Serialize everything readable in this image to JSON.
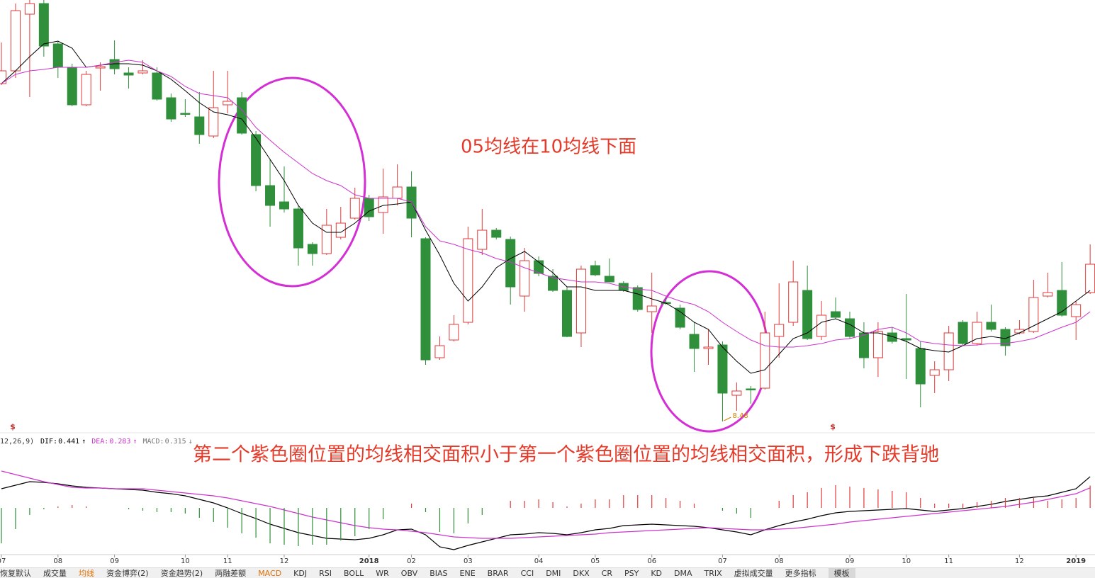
{
  "chart_data": [
    {
      "type": "candlestick",
      "open": [
        13.25,
        13.43,
        14.23,
        14.38,
        13.81,
        13.48,
        12.95,
        13.47,
        13.59,
        13.4,
        13.4,
        13.4,
        13.05,
        12.83,
        12.78,
        12.51,
        12.95,
        13.05,
        12.53,
        11.81,
        11.58,
        11.48,
        10.98,
        10.85,
        11.08,
        11.35,
        11.63,
        11.43,
        11.63,
        11.79,
        11.06,
        9.38,
        9.63,
        9.88,
        10.91,
        11.18,
        11.05,
        10.25,
        10.75,
        10.53,
        10.33,
        9.73,
        10.68,
        10.53,
        10.43,
        10.37,
        10.03,
        10.16,
        10.08,
        9.71,
        9.51,
        9.56,
        8.85,
        8.94,
        8.95,
        9.68,
        9.88,
        10.33,
        9.68,
        10.03,
        9.93,
        9.73,
        9.38,
        9.73,
        9.65,
        9.51,
        9.13,
        9.21,
        9.88,
        9.58,
        9.88,
        9.78,
        9.73,
        9.75,
        10.25,
        10.33,
        9.96,
        10.3
      ],
      "high": [
        13.83,
        14.38,
        14.43,
        14.43,
        13.85,
        13.53,
        13.43,
        13.55,
        13.86,
        13.48,
        13.58,
        13.48,
        13.11,
        13.03,
        13.13,
        13.43,
        13.43,
        13.13,
        12.58,
        12.18,
        12.08,
        11.53,
        11.01,
        11.48,
        11.51,
        11.78,
        11.68,
        12.05,
        12.11,
        12.01,
        11.08,
        9.68,
        9.98,
        11.23,
        11.48,
        11.21,
        11.09,
        10.93,
        10.81,
        10.63,
        10.38,
        10.68,
        10.75,
        10.78,
        10.46,
        10.4,
        10.58,
        10.23,
        10.13,
        9.88,
        9.78,
        9.61,
        9.03,
        8.98,
        10.03,
        10.43,
        10.75,
        10.68,
        10.18,
        10.23,
        10.03,
        9.88,
        9.88,
        9.81,
        10.28,
        9.61,
        9.33,
        9.83,
        9.91,
        10.03,
        10.13,
        9.81,
        9.91,
        10.48,
        10.58,
        10.73,
        10.18,
        10.98
      ],
      "low": [
        13.23,
        13.33,
        13.06,
        13.63,
        13.33,
        12.93,
        12.93,
        13.15,
        13.38,
        13.18,
        13.38,
        13.01,
        12.71,
        12.78,
        12.4,
        12.48,
        12.83,
        12.53,
        11.73,
        11.23,
        11.43,
        10.68,
        10.68,
        10.83,
        11.05,
        11.33,
        11.31,
        11.13,
        11.53,
        11.08,
        9.28,
        9.35,
        9.61,
        9.85,
        10.83,
        11.05,
        10.13,
        10.03,
        10.53,
        10.31,
        9.67,
        9.53,
        10.53,
        10.45,
        10.31,
        10.03,
        9.73,
        10.13,
        9.78,
        9.18,
        9.28,
        8.48,
        8.63,
        8.73,
        8.93,
        9.38,
        9.83,
        9.63,
        9.63,
        9.93,
        9.65,
        9.23,
        9.11,
        9.58,
        9.08,
        8.68,
        8.88,
        9.05,
        9.55,
        9.55,
        9.75,
        9.41,
        9.71,
        9.73,
        10.23,
        9.96,
        9.63,
        10.28
      ],
      "close": [
        13.43,
        14.28,
        14.38,
        13.78,
        13.48,
        12.95,
        13.38,
        13.49,
        13.46,
        13.37,
        13.43,
        13.03,
        12.75,
        12.82,
        12.53,
        12.91,
        13.0,
        12.55,
        11.81,
        11.53,
        11.48,
        10.93,
        10.85,
        11.25,
        11.28,
        11.63,
        11.37,
        11.65,
        11.79,
        11.35,
        9.35,
        9.55,
        9.85,
        11.06,
        11.18,
        11.08,
        10.38,
        10.75,
        10.57,
        10.33,
        9.68,
        10.63,
        10.55,
        10.45,
        10.33,
        10.06,
        10.11,
        10.15,
        9.81,
        9.51,
        9.53,
        8.88,
        8.91,
        8.93,
        9.73,
        9.85,
        10.45,
        9.65,
        9.98,
        9.95,
        9.68,
        9.38,
        9.75,
        9.61,
        9.63,
        9.01,
        9.21,
        9.73,
        9.58,
        9.88,
        9.78,
        9.55,
        9.78,
        10.23,
        10.3,
        9.98,
        10.13,
        10.7
      ],
      "up_color": "#e03a3a",
      "down_color": "#2f8f3a",
      "lines": [
        {
          "color": "#000000",
          "values": [
            13.25,
            13.43,
            13.63,
            13.81,
            13.85,
            13.75,
            13.48,
            13.51,
            13.53,
            13.53,
            13.51,
            13.43,
            13.31,
            13.15,
            12.98,
            12.85,
            12.81,
            12.75,
            12.48,
            12.18,
            11.88,
            11.53,
            11.28,
            11.15,
            11.15,
            11.28,
            11.45,
            11.53,
            11.55,
            11.58,
            11.18,
            10.83,
            10.43,
            10.18,
            10.38,
            10.65,
            10.78,
            10.88,
            10.73,
            10.58,
            10.38,
            10.38,
            10.33,
            10.33,
            10.33,
            10.28,
            10.21,
            10.15,
            10.03,
            9.88,
            9.78,
            9.53,
            9.33,
            9.16,
            9.21,
            9.43,
            9.65,
            9.73,
            9.88,
            9.93,
            9.85,
            9.73,
            9.73,
            9.68,
            9.61,
            9.51,
            9.48,
            9.46,
            9.55,
            9.65,
            9.68,
            9.65,
            9.73,
            9.83,
            9.93,
            10.03,
            10.18,
            10.33
          ]
        },
        {
          "color": "#cc33cc",
          "values": [
            13.25,
            13.38,
            13.43,
            13.45,
            13.48,
            13.48,
            13.48,
            13.51,
            13.55,
            13.58,
            13.55,
            13.43,
            13.35,
            13.21,
            13.11,
            13.08,
            13.05,
            12.88,
            12.63,
            12.45,
            12.28,
            12.13,
            11.98,
            11.88,
            11.81,
            11.68,
            11.63,
            11.63,
            11.63,
            11.58,
            11.23,
            11.03,
            10.98,
            10.91,
            10.86,
            10.78,
            10.73,
            10.65,
            10.58,
            10.51,
            10.48,
            10.45,
            10.45,
            10.43,
            10.38,
            10.35,
            10.33,
            10.25,
            10.18,
            10.13,
            10.03,
            9.88,
            9.75,
            9.63,
            9.55,
            9.53,
            9.53,
            9.55,
            9.58,
            9.63,
            9.65,
            9.7,
            9.78,
            9.81,
            9.73,
            9.61,
            9.58,
            9.56,
            9.55,
            9.56,
            9.58,
            9.58,
            9.61,
            9.65,
            9.73,
            9.81,
            9.88,
            10.03
          ]
        }
      ],
      "ylim": [
        8.33,
        14.43
      ],
      "signal_label": "$",
      "annotation": "05均线在10均线下面"
    },
    {
      "type": "macd",
      "params": "12,26,9)",
      "readout_labels": [
        "DIF:",
        "DEA:",
        "MACD:"
      ],
      "readout_arrows": [
        "↑",
        "↑",
        "↓"
      ],
      "categories": [
        "07",
        null,
        null,
        null,
        "08",
        null,
        null,
        null,
        "09",
        null,
        null,
        null,
        null,
        "10",
        null,
        null,
        "11",
        null,
        null,
        null,
        "12",
        null,
        null,
        null,
        null,
        null,
        "2018",
        null,
        null,
        "02",
        null,
        null,
        null,
        "03",
        null,
        null,
        null,
        null,
        "04",
        null,
        null,
        null,
        "05",
        null,
        null,
        null,
        "06",
        null,
        null,
        null,
        null,
        "07",
        null,
        null,
        null,
        "08",
        null,
        null,
        null,
        null,
        "09",
        null,
        null,
        null,
        "10",
        null,
        null,
        "11",
        null,
        null,
        null,
        null,
        "12",
        null,
        null,
        null,
        "2019",
        null
      ],
      "series": [
        {
          "color": "#000000",
          "values": [
            0.27,
            0.32,
            0.37,
            0.36,
            0.34,
            0.31,
            0.29,
            0.28,
            0.27,
            0.26,
            0.25,
            0.22,
            0.2,
            0.17,
            0.12,
            0.07,
            0,
            -0.08,
            -0.15,
            -0.23,
            -0.29,
            -0.35,
            -0.39,
            -0.43,
            -0.44,
            -0.45,
            -0.43,
            -0.38,
            -0.31,
            -0.3,
            -0.38,
            -0.55,
            -0.59,
            -0.53,
            -0.48,
            -0.43,
            -0.38,
            -0.37,
            -0.35,
            -0.36,
            -0.38,
            -0.35,
            -0.31,
            -0.29,
            -0.25,
            -0.24,
            -0.23,
            -0.24,
            -0.25,
            -0.26,
            -0.28,
            -0.31,
            -0.34,
            -0.38,
            -0.31,
            -0.25,
            -0.2,
            -0.16,
            -0.11,
            -0.07,
            -0.05,
            -0.04,
            -0.03,
            -0.02,
            -0.01,
            -0.03,
            -0.05,
            -0.03,
            -0.01,
            0.02,
            0.05,
            0.09,
            0.12,
            0.15,
            0.17,
            0.22,
            0.27,
            0.441
          ]
        },
        {
          "color": "#cc33cc",
          "values": [
            0.52,
            0.47,
            0.42,
            0.37,
            0.33,
            0.29,
            0.28,
            0.28,
            0.27,
            0.27,
            0.27,
            0.25,
            0.23,
            0.21,
            0.19,
            0.17,
            0.14,
            0.1,
            0.06,
            0.02,
            -0.03,
            -0.08,
            -0.13,
            -0.17,
            -0.21,
            -0.25,
            -0.28,
            -0.3,
            -0.31,
            -0.33,
            -0.35,
            -0.38,
            -0.41,
            -0.42,
            -0.43,
            -0.43,
            -0.43,
            -0.42,
            -0.41,
            -0.4,
            -0.39,
            -0.38,
            -0.37,
            -0.35,
            -0.34,
            -0.33,
            -0.32,
            -0.31,
            -0.3,
            -0.29,
            -0.28,
            -0.29,
            -0.3,
            -0.31,
            -0.31,
            -0.3,
            -0.29,
            -0.27,
            -0.25,
            -0.23,
            -0.2,
            -0.18,
            -0.16,
            -0.14,
            -0.12,
            -0.1,
            -0.08,
            -0.06,
            -0.04,
            -0.02,
            0,
            0.02,
            0.05,
            0.08,
            0.12,
            0.16,
            0.2,
            0.283
          ]
        },
        {
          "color": "#888888",
          "values": [
            -0.5,
            -0.3,
            -0.1,
            -0.02,
            0.02,
            0.04,
            0.02,
            0,
            0,
            -0.02,
            -0.04,
            -0.06,
            -0.06,
            -0.08,
            -0.14,
            -0.2,
            -0.28,
            -0.36,
            -0.42,
            -0.5,
            -0.52,
            -0.54,
            -0.52,
            -0.52,
            -0.46,
            -0.4,
            -0.3,
            -0.16,
            0,
            0.06,
            -0.06,
            -0.34,
            -0.36,
            -0.22,
            -0.1,
            0,
            0.1,
            0.1,
            0.12,
            0.08,
            0.02,
            0.06,
            0.12,
            0.12,
            0.18,
            0.18,
            0.18,
            0.14,
            0.1,
            0.06,
            0,
            -0.04,
            -0.08,
            -0.14,
            0,
            0.1,
            0.18,
            0.22,
            0.28,
            0.32,
            0.3,
            0.28,
            0.26,
            0.24,
            0.22,
            0.14,
            0.06,
            0.06,
            0.06,
            0.08,
            0.1,
            0.14,
            0.14,
            0.14,
            0.1,
            0.12,
            0.14,
            0.315
          ]
        }
      ],
      "ylim": [
        -0.65,
        1.05
      ],
      "annotation": "第二个紫色圈位置的均线相交面积小于第一个紫色圈位置的均线相交面积，形成下跌背驰"
    }
  ],
  "tabs": [
    {
      "label": "恢复默认"
    },
    {
      "label": "成交量"
    },
    {
      "label": "均线",
      "active": true
    },
    {
      "label": "资金博弈(2)"
    },
    {
      "label": "资金趋势(2)"
    },
    {
      "label": "两融差额"
    },
    {
      "label": "MACD",
      "active": true
    },
    {
      "label": "KDJ"
    },
    {
      "label": "RSI"
    },
    {
      "label": "BOLL"
    },
    {
      "label": "WR"
    },
    {
      "label": "OBV"
    },
    {
      "label": "BIAS"
    },
    {
      "label": "ENE"
    },
    {
      "label": "BRAR"
    },
    {
      "label": "CCI"
    },
    {
      "label": "DMI"
    },
    {
      "label": "DKX"
    },
    {
      "label": "CR"
    },
    {
      "label": "PSY"
    },
    {
      "label": "KD"
    },
    {
      "label": "DMA"
    },
    {
      "label": "TRIX"
    },
    {
      "label": "虚拟成交量"
    },
    {
      "label": "更多指标"
    },
    {
      "label": "模板"
    }
  ]
}
